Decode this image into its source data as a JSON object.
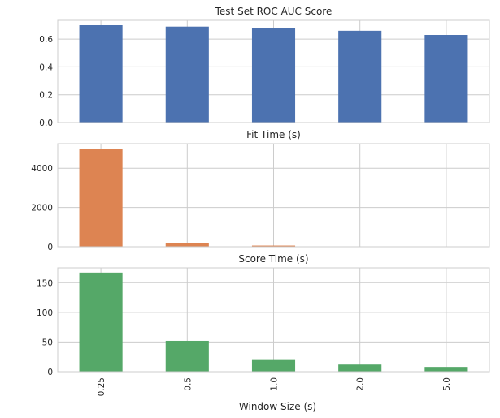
{
  "chart_data": {
    "type": "bar",
    "categories": [
      "0.25",
      "0.5",
      "1.0",
      "2.0",
      "5.0"
    ],
    "xlabel": "Window Size (s)",
    "panels": [
      {
        "title": "Test Set ROC AUC Score",
        "color": "#4c72b0",
        "values": [
          0.7,
          0.69,
          0.68,
          0.66,
          0.63
        ],
        "ylim": [
          0,
          0.735
        ],
        "yticks": [
          0.0,
          0.2,
          0.4,
          0.6
        ],
        "ytick_labels": [
          "0.0",
          "0.2",
          "0.4",
          "0.6"
        ]
      },
      {
        "title": "Fit Time (s)",
        "color": "#dd8452",
        "values": [
          5000,
          175,
          60,
          8,
          3
        ],
        "ylim": [
          0,
          5250
        ],
        "yticks": [
          0,
          2000,
          4000
        ],
        "ytick_labels": [
          "0",
          "2000",
          "4000"
        ]
      },
      {
        "title": "Score Time (s)",
        "color": "#55a868",
        "values": [
          167,
          52,
          21,
          12,
          8
        ],
        "ylim": [
          0,
          175
        ],
        "yticks": [
          0,
          50,
          100,
          150
        ],
        "ytick_labels": [
          "0",
          "50",
          "100",
          "150"
        ]
      }
    ],
    "grid": true,
    "legend": "none"
  }
}
